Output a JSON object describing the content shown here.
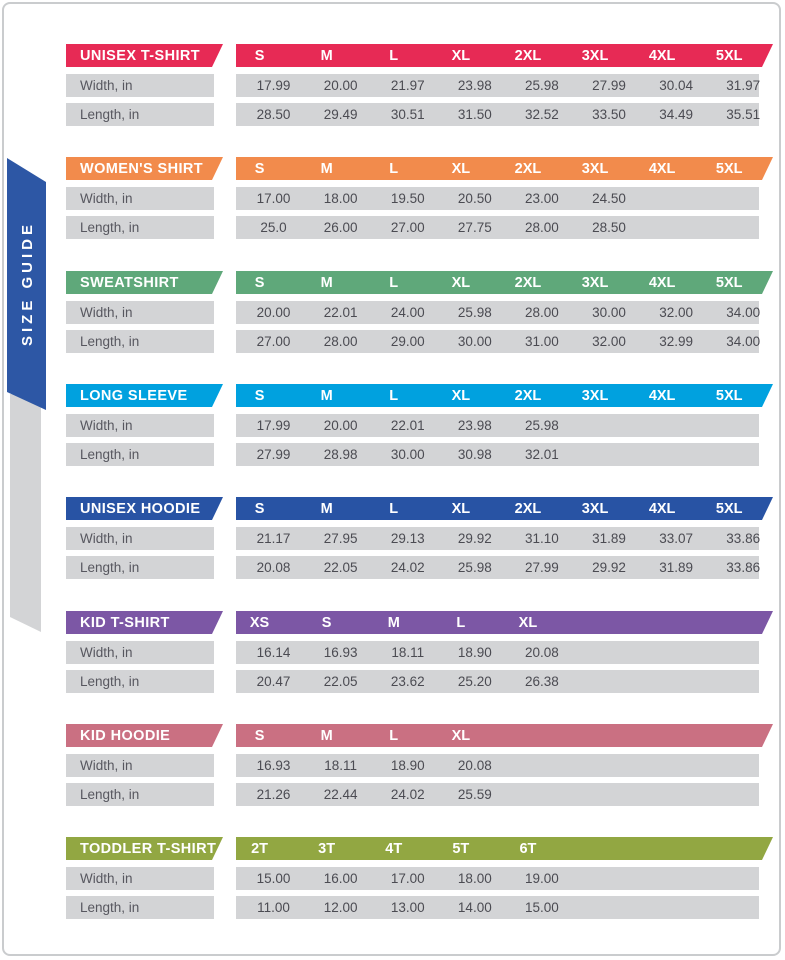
{
  "sidebar": {
    "title": "SIZE GUIDE",
    "ribbon_color": "#2d57a5",
    "tail_color": "#d3d4d6"
  },
  "row_labels": {
    "width": "Width, in",
    "length": "Length, in"
  },
  "row_bg": "#d3d4d6",
  "sections": [
    {
      "label": "UNISEX T-SHIRT",
      "color": "#e72a55",
      "sizes": [
        "S",
        "M",
        "L",
        "XL",
        "2XL",
        "3XL",
        "4XL",
        "5XL"
      ],
      "width": [
        "17.99",
        "20.00",
        "21.97",
        "23.98",
        "25.98",
        "27.99",
        "30.04",
        "31.97"
      ],
      "length": [
        "28.50",
        "29.49",
        "30.51",
        "31.50",
        "32.52",
        "33.50",
        "34.49",
        "35.51"
      ]
    },
    {
      "label": "WOMEN'S SHIRT",
      "color": "#f28b4c",
      "sizes": [
        "S",
        "M",
        "L",
        "XL",
        "2XL",
        "3XL",
        "4XL",
        "5XL"
      ],
      "width": [
        "17.00",
        "18.00",
        "19.50",
        "20.50",
        "23.00",
        "24.50"
      ],
      "length": [
        "25.0",
        "26.00",
        "27.00",
        "27.75",
        "28.00",
        "28.50"
      ]
    },
    {
      "label": "SWEATSHIRT",
      "color": "#5fa87a",
      "sizes": [
        "S",
        "M",
        "L",
        "XL",
        "2XL",
        "3XL",
        "4XL",
        "5XL"
      ],
      "width": [
        "20.00",
        "22.01",
        "24.00",
        "25.98",
        "28.00",
        "30.00",
        "32.00",
        "34.00"
      ],
      "length": [
        "27.00",
        "28.00",
        "29.00",
        "30.00",
        "31.00",
        "32.00",
        "32.99",
        "34.00"
      ]
    },
    {
      "label": "LONG SLEEVE",
      "color": "#00a1df",
      "sizes": [
        "S",
        "M",
        "L",
        "XL",
        "2XL",
        "3XL",
        "4XL",
        "5XL"
      ],
      "width": [
        "17.99",
        "20.00",
        "22.01",
        "23.98",
        "25.98"
      ],
      "length": [
        "27.99",
        "28.98",
        "30.00",
        "30.98",
        "32.01"
      ]
    },
    {
      "label": "UNISEX HOODIE",
      "color": "#2853a4",
      "sizes": [
        "S",
        "M",
        "L",
        "XL",
        "2XL",
        "3XL",
        "4XL",
        "5XL"
      ],
      "width": [
        "21.17",
        "27.95",
        "29.13",
        "29.92",
        "31.10",
        "31.89",
        "33.07",
        "33.86"
      ],
      "length": [
        "20.08",
        "22.05",
        "24.02",
        "25.98",
        "27.99",
        "29.92",
        "31.89",
        "33.86"
      ]
    },
    {
      "label": "KID T-SHIRT",
      "color": "#7c57a5",
      "sizes": [
        "XS",
        "S",
        "M",
        "L",
        "XL"
      ],
      "width": [
        "16.14",
        "16.93",
        "18.11",
        "18.90",
        "20.08"
      ],
      "length": [
        "20.47",
        "22.05",
        "23.62",
        "25.20",
        "26.38"
      ]
    },
    {
      "label": "KID HOODIE",
      "color": "#ca7082",
      "sizes": [
        "S",
        "M",
        "L",
        "XL"
      ],
      "width": [
        "16.93",
        "18.11",
        "18.90",
        "20.08"
      ],
      "length": [
        "21.26",
        "22.44",
        "24.02",
        "25.59"
      ]
    },
    {
      "label": "TODDLER T-SHIRT",
      "color": "#92a742",
      "sizes": [
        "2T",
        "3T",
        "4T",
        "5T",
        "6T"
      ],
      "width": [
        "15.00",
        "16.00",
        "17.00",
        "18.00",
        "19.00"
      ],
      "length": [
        "11.00",
        "12.00",
        "13.00",
        "14.00",
        "15.00"
      ]
    }
  ]
}
